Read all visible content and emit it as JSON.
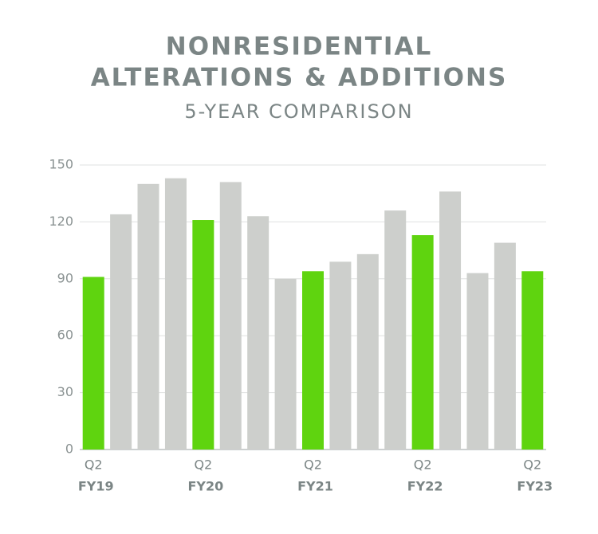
{
  "chart_data": {
    "type": "bar",
    "title": [
      "NONRESIDENTIAL",
      "ALTERATIONS & ADDITIONS"
    ],
    "subtitle": "5-YEAR COMPARISON",
    "categories": [
      "Q2",
      null,
      null,
      null,
      "Q2",
      null,
      null,
      null,
      "Q2",
      null,
      null,
      null,
      "Q2",
      null,
      null,
      null,
      "Q2"
    ],
    "category_groups": [
      "FY19",
      null,
      null,
      null,
      "FY20",
      null,
      null,
      null,
      "FY21",
      null,
      null,
      null,
      "FY22",
      null,
      null,
      null,
      "FY23"
    ],
    "values": [
      91,
      124,
      140,
      143,
      121,
      141,
      123,
      90,
      94,
      99,
      103,
      126,
      113,
      136,
      93,
      109,
      94
    ],
    "colors": [
      "#5fd40f",
      "#cdcfcc",
      "#cdcfcc",
      "#cdcfcc",
      "#5fd40f",
      "#cdcfcc",
      "#cdcfcc",
      "#cdcfcc",
      "#5fd40f",
      "#cdcfcc",
      "#cdcfcc",
      "#cdcfcc",
      "#5fd40f",
      "#cdcfcc",
      "#cdcfcc",
      "#cdcfcc",
      "#5fd40f"
    ],
    "ylim": [
      0,
      150
    ],
    "yticks": [
      0,
      30,
      60,
      90,
      120,
      150
    ],
    "grid": true
  }
}
